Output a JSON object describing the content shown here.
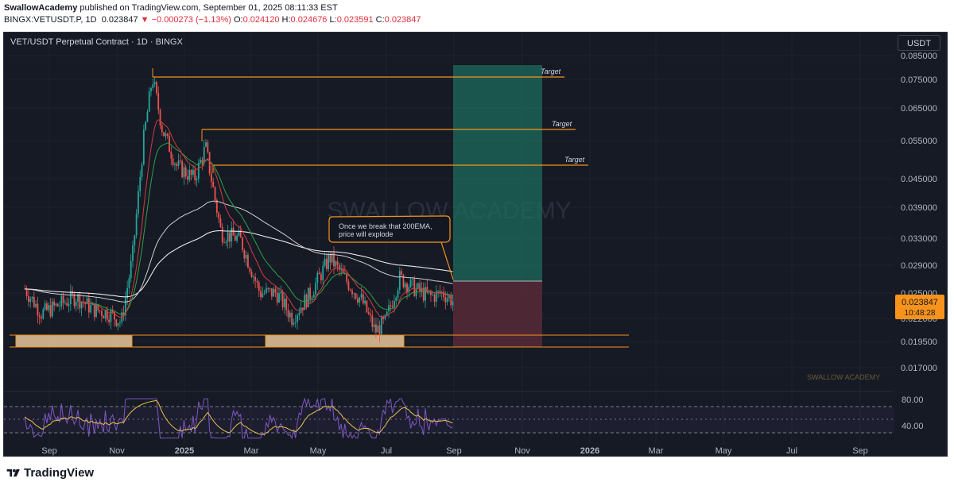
{
  "header": {
    "publisher": "SwallowAcademy",
    "published_text": "published on TradingView.com, September 01, 2025 08:11:33 EST",
    "symbol": "BINGX:VETUSDT.P, 1D",
    "last": "0.023847",
    "change": "−0.000273 (−1.13%)",
    "open_label": "O:",
    "open": "0.024120",
    "high_label": "H:",
    "high": "0.024676",
    "low_label": "L:",
    "low": "0.023591",
    "close_label": "C:",
    "close": "0.023847"
  },
  "chart_title": "VET/USDT Perpetual Contract · 1D · BINGX",
  "currency_button": "USDT",
  "price_badge": {
    "price": "0.023847",
    "countdown": "10:48:28"
  },
  "watermark": "SWALLOW ACADEMY",
  "footer_watermark": "SWALLOW ACADEMY",
  "annotation": [
    "Once we break that 200EMA,",
    "price will explode"
  ],
  "targets": [
    "Target",
    "Target",
    "Target"
  ],
  "brand": "TradingView",
  "colors": {
    "background": "#161a25",
    "orange": "#f7931a",
    "green_zone": "#1e6b5c",
    "red_zone": "#5c2a3a",
    "rsi_line": "#7e57c2"
  },
  "chart_data": [
    {
      "type": "line",
      "series": [
        {
          "price_at_date": [
            [
              "2024-08-10",
              0.0255
            ],
            [
              "2024-08-25",
              0.0225
            ],
            [
              "2024-09-10",
              0.0235
            ],
            [
              "2024-09-25",
              0.0245
            ],
            [
              "2024-10-10",
              0.023
            ],
            [
              "2024-10-25",
              0.0225
            ],
            [
              "2024-11-05",
              0.0215
            ],
            [
              "2024-11-15",
              0.03
            ],
            [
              "2024-11-25",
              0.055
            ],
            [
              "2024-12-03",
              0.076
            ],
            [
              "2024-12-12",
              0.058
            ],
            [
              "2024-12-25",
              0.048
            ],
            [
              "2025-01-10",
              0.045
            ],
            [
              "2025-01-20",
              0.053
            ],
            [
              "2025-02-03",
              0.034
            ],
            [
              "2025-02-20",
              0.033
            ],
            [
              "2025-03-10",
              0.025
            ],
            [
              "2025-03-25",
              0.025
            ],
            [
              "2025-04-08",
              0.022
            ],
            [
              "2025-04-25",
              0.025
            ],
            [
              "2025-05-12",
              0.03
            ],
            [
              "2025-05-25",
              0.027
            ],
            [
              "2025-06-10",
              0.024
            ],
            [
              "2025-06-22",
              0.0205
            ],
            [
              "2025-07-01",
              0.0215
            ],
            [
              "2025-07-14",
              0.027
            ],
            [
              "2025-07-28",
              0.0255
            ],
            [
              "2025-08-10",
              0.0245
            ],
            [
              "2025-08-22",
              0.025
            ],
            [
              "2025-09-01",
              0.023847
            ]
          ]
        }
      ],
      "x_ticks": [
        "Sep",
        "Nov",
        "2025",
        "Mar",
        "May",
        "Jul",
        "Sep",
        "Nov",
        "2026",
        "Mar",
        "May",
        "Jul",
        "Sep"
      ],
      "y_ticks": [
        "0.085000",
        "0.075000",
        "0.065000",
        "0.055000",
        "0.045000",
        "0.039000",
        "0.033000",
        "0.029000",
        "0.025000",
        "0.022000",
        "0.019500",
        "0.017000"
      ],
      "y_scale": "log",
      "target_levels": [
        0.075,
        0.057,
        0.048
      ],
      "support_zone": [
        0.0183,
        0.0197
      ],
      "position": {
        "entry": 0.0266,
        "target": 0.082,
        "stop": 0.0185
      }
    },
    {
      "type": "line",
      "y_ticks": [
        "80.00",
        "40.00"
      ],
      "upper_band": 70,
      "lower_band": 30
    }
  ]
}
